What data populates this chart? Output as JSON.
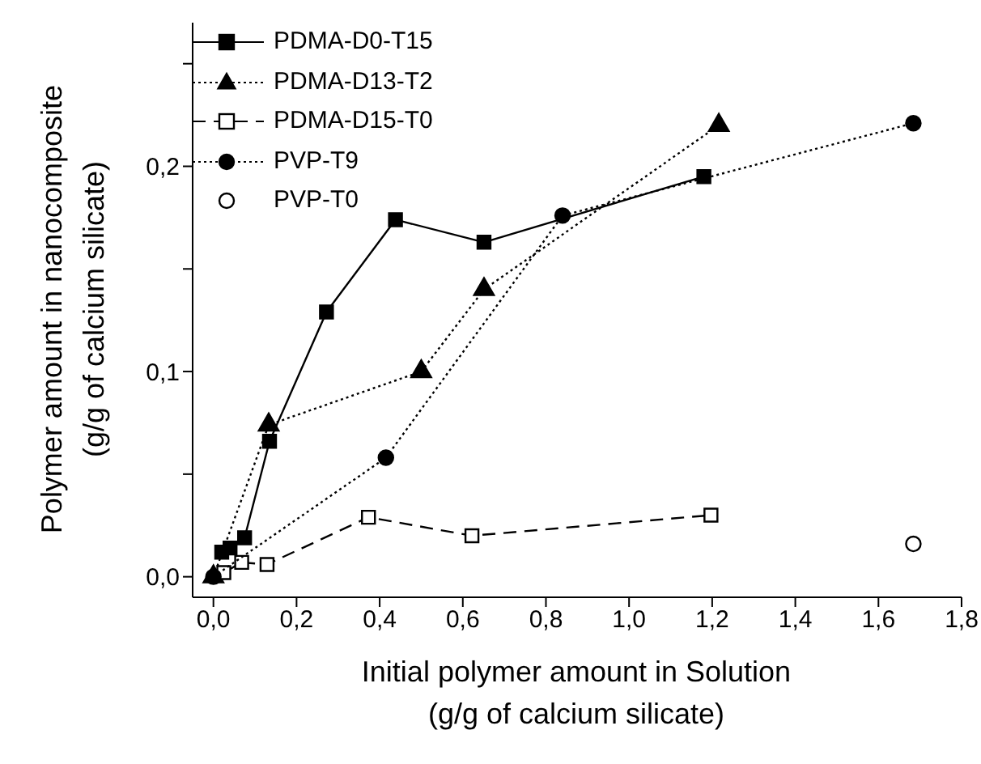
{
  "chart_data": {
    "type": "scatter",
    "xlabel": "Initial polymer amount in Solution\n(g/g of calcium silicate)",
    "ylabel": "Polymer amount in nanocomposite\n(g/g of calcium silicate)",
    "xlim": [
      -0.05,
      1.8
    ],
    "xticks": [
      {
        "value": 0,
        "label": "0,0"
      },
      {
        "value": 0.2,
        "label": "0,2"
      },
      {
        "value": 0.4,
        "label": "0,4"
      },
      {
        "value": 0.6,
        "label": "0,6"
      },
      {
        "value": 0.8,
        "label": "0,8"
      },
      {
        "value": 1,
        "label": "1,0"
      },
      {
        "value": 1.2,
        "label": "1,2"
      },
      {
        "value": 1.4,
        "label": "1,4"
      },
      {
        "value": 1.6,
        "label": "1,6"
      },
      {
        "value": 1.8,
        "label": "1,8"
      }
    ],
    "ylim": [
      -0.01,
      0.27
    ],
    "yticks": [
      {
        "value": 0,
        "label": "0,0"
      },
      {
        "value": 0.05,
        "label": null
      },
      {
        "value": 0.1,
        "label": "0,1"
      },
      {
        "value": 0.15,
        "label": null
      },
      {
        "value": 0.2,
        "label": "0,2"
      },
      {
        "value": 0.25,
        "label": null
      }
    ],
    "legend": "top left",
    "series": [
      {
        "name": "PDMA-D0-T15",
        "color": "#000000",
        "type": "line",
        "marker": "square",
        "line_style": "solid",
        "x": [
          0.02,
          0.04,
          0.075,
          0.135,
          0.272,
          0.438,
          0.651,
          0.84,
          1.18
        ],
        "values": [
          0.012,
          0.014,
          0.019,
          0.066,
          0.129,
          0.174,
          0.163,
          null,
          0.195
        ]
      },
      {
        "name": "PDMA-D13-T2",
        "color": "#000000",
        "type": "line",
        "marker": "triangle",
        "line_style": "dotted",
        "x": [
          0,
          0.133,
          0.5,
          0.651,
          1.216
        ],
        "values": [
          0,
          0.074,
          0.1,
          0.14,
          0.22
        ]
      },
      {
        "name": "PDMA-D15-T0",
        "color": "#ffffff",
        "type": "line",
        "marker": "square",
        "line_style": "dashed",
        "x": [
          0.025,
          0.068,
          0.129,
          0.373,
          0.622,
          1.197
        ],
        "values": [
          0.002,
          0.007,
          0.006,
          0.029,
          0.02,
          0.03
        ]
      },
      {
        "name": "PVP-T9",
        "color": "#000000",
        "type": "line",
        "marker": "circle",
        "line_style": "dotted",
        "x": [
          0,
          0.415,
          0.84,
          1.684
        ],
        "values": [
          0,
          0.058,
          0.176,
          0.221
        ]
      },
      {
        "name": "PVP-T0",
        "color": "#ffffff",
        "type": "scatter",
        "marker": "circle",
        "x": [
          1.684
        ],
        "values": [
          0.016
        ]
      }
    ]
  }
}
